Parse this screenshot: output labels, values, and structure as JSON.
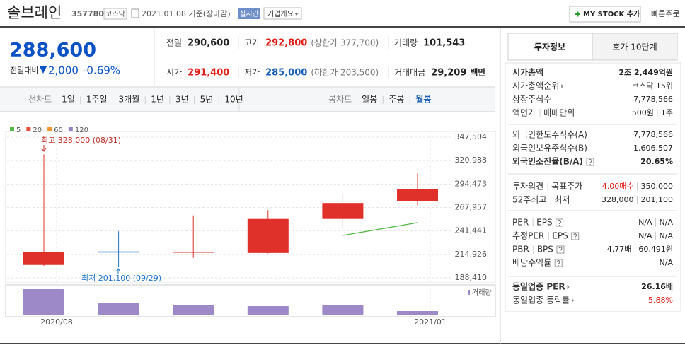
{
  "header": {
    "name": "솔브레인",
    "code": "357780",
    "market": "코스닥",
    "date": "2021.01.08 기준(장마감)",
    "realtime": "실시간",
    "overview": "기업개요",
    "my_stock": "MY STOCK 추가",
    "quick_order": "빠른주문"
  },
  "quote": {
    "price": "288,600",
    "change_label": "전일대비",
    "change": "2,000",
    "change_rate": "-0.69%"
  },
  "price_table": {
    "rows": [
      [
        {
          "label": "전일",
          "value": "290,600"
        },
        {
          "label": "고가",
          "value": "292,800",
          "note": "(상한가 377,700)"
        },
        {
          "label": "거래량",
          "value": "101,543"
        }
      ],
      [
        {
          "label": "시가",
          "value": "291,400"
        },
        {
          "label": "저가",
          "value": "285,000",
          "note": "(하한가 203,500)"
        },
        {
          "label": "거래대금",
          "value": "29,209",
          "unit": "백만"
        }
      ]
    ]
  },
  "chart_tabs": {
    "line": [
      "선차트",
      "1일",
      "1주일",
      "3개월",
      "1년",
      "3년",
      "5년",
      "10년"
    ],
    "candle": [
      "봉차트",
      "일봉",
      "주봉",
      "월봉"
    ],
    "selected": "월봉"
  },
  "chart_data": {
    "type": "candlestick",
    "categories": [
      "2020/08",
      null,
      null,
      null,
      null,
      "2021/01"
    ],
    "open": [
      203000,
      218200,
      217000,
      216500,
      255000,
      275500
    ],
    "high": [
      328000,
      241000,
      259000,
      265000,
      283500,
      306500
    ],
    "low": [
      202000,
      201100,
      211000,
      216000,
      245000,
      270500
    ],
    "close": [
      218000,
      217000,
      218000,
      255000,
      273000,
      288600
    ],
    "up_color": "#e0302a",
    "down_color": "#1f74c9",
    "ylim": [
      188410,
      347504
    ],
    "yticks": [
      {
        "value": 188410,
        "label": "188,410"
      },
      {
        "value": 214926,
        "label": "214,926"
      },
      {
        "value": 241441,
        "label": "241,441"
      },
      {
        "value": 267957,
        "label": "267,957"
      },
      {
        "value": 294473,
        "label": "294,473"
      },
      {
        "value": 320988,
        "label": "320,988"
      },
      {
        "value": 347504,
        "label": "347,504"
      }
    ],
    "grid": true,
    "moving_averages": [
      {
        "name": "5",
        "color": "#54b848",
        "values": [
          null,
          null,
          null,
          null,
          236400,
          250800
        ]
      },
      {
        "name": "20",
        "color": "#e0503c",
        "values": [
          null,
          null,
          null,
          null,
          null,
          null
        ]
      },
      {
        "name": "60",
        "color": "#f0962e",
        "values": [
          null,
          null,
          null,
          null,
          null,
          null
        ]
      },
      {
        "name": "120",
        "color": "#9a7fc4",
        "values": [
          null,
          null,
          null,
          null,
          null,
          null
        ]
      }
    ],
    "volume": {
      "name": "거래량",
      "color": "#9d89c8",
      "values": [
        3700000,
        1700000,
        1400000,
        1300000,
        1500000,
        600000
      ],
      "ylim": [
        0,
        4200000
      ]
    },
    "annotations": {
      "high": "최고 328,000 (08/31)",
      "low": "최저 201,100 (09/29)"
    }
  },
  "info_panel": {
    "tabs": [
      "투자정보",
      "호가 10단계"
    ],
    "groups": [
      [
        {
          "label": [
            "시가총액"
          ],
          "value": [
            "2조 2,449억원"
          ]
        },
        {
          "label": [
            "시가총액순위"
          ],
          "value": [
            "코스닥 15위"
          ]
        },
        {
          "label": [
            "상장주식수"
          ],
          "value": [
            "7,778,566"
          ]
        },
        {
          "label": [
            "액면가",
            "매매단위"
          ],
          "value": [
            "500원",
            "1주"
          ]
        }
      ],
      [
        {
          "label": [
            "외국인한도주식수(A)"
          ],
          "value": [
            "7,778,566"
          ]
        },
        {
          "label": [
            "외국인보유주식수(B)"
          ],
          "value": [
            "1,606,507"
          ]
        },
        {
          "label": [
            "외국인소진율(B/A)"
          ],
          "value": [
            "20.65%"
          ]
        }
      ],
      [
        {
          "label": [
            "투자의견",
            "목표주가"
          ],
          "value": [
            "4.00매수",
            "350,000"
          ]
        },
        {
          "label": [
            "52주최고",
            "최저"
          ],
          "value": [
            "328,000",
            "201,100"
          ]
        }
      ],
      [
        {
          "label": [
            "PER",
            "EPS"
          ],
          "value": [
            "N/A",
            "N/A"
          ]
        },
        {
          "label": [
            "추정PER",
            "EPS"
          ],
          "value": [
            "N/A",
            "N/A"
          ]
        },
        {
          "label": [
            "PBR",
            "BPS"
          ],
          "value": [
            "4.77배",
            "60,491원"
          ]
        },
        {
          "label": [
            "배당수익률"
          ],
          "value": [
            "N/A"
          ]
        }
      ],
      [
        {
          "label": [
            "동일업종 PER"
          ],
          "value": [
            "26.16배"
          ]
        },
        {
          "label": [
            "동일업종 등락률"
          ],
          "value": [
            "+5.88%"
          ]
        }
      ]
    ]
  }
}
